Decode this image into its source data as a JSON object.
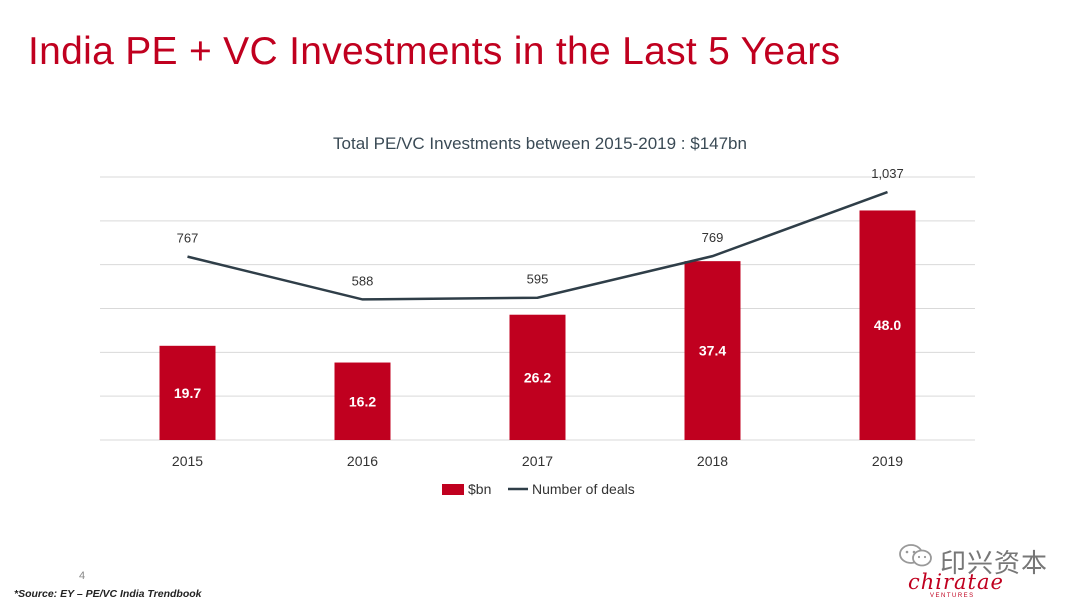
{
  "slide": {
    "title": "India PE + VC Investments in the Last 5 Years",
    "page_number": "4",
    "source": "*Source: EY – PE/VC India Trendbook"
  },
  "watermark": {
    "text": "印兴资本",
    "logo_text": "chiratae",
    "logo_sub": "VENTURES",
    "icon": "wechat-icon"
  },
  "colors": {
    "title": "#c0001f",
    "bar": "#c0001f",
    "line": "#2f3e48",
    "grid": "#d9d9d9"
  },
  "chart_data": {
    "type": "bar",
    "title": "Total PE/VC Investments between 2015-2019 : $147bn",
    "categories": [
      "2015",
      "2016",
      "2017",
      "2018",
      "2019"
    ],
    "series": [
      {
        "name": "$bn",
        "type": "bar",
        "values": [
          19.7,
          16.2,
          26.2,
          37.4,
          48.0
        ],
        "labels": [
          "19.7",
          "16.2",
          "26.2",
          "37.4",
          "48.0"
        ]
      },
      {
        "name": "Number of deals",
        "type": "line",
        "values": [
          767,
          588,
          595,
          769,
          1037
        ],
        "labels": [
          "767",
          "588",
          "595",
          "769",
          "1,037"
        ]
      }
    ],
    "bar_axis_range": [
      0,
      55
    ],
    "line_axis_range": [
      0,
      1100
    ],
    "grid": true,
    "legend_position": "bottom"
  }
}
